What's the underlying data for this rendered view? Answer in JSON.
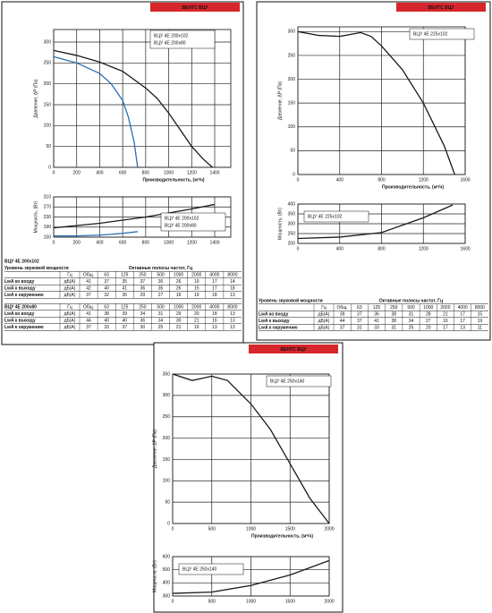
{
  "panels": [
    {
      "header": "ВЕНТС ВЦУ",
      "pressure": {
        "ylabel": "Давление, ΔP (Па)",
        "xlabel": "Производительность, (м³/ч)",
        "xlim": [
          0,
          1540
        ],
        "xticks": [
          0,
          200,
          400,
          600,
          800,
          1000,
          1200,
          1400
        ],
        "ylim": [
          0,
          330
        ],
        "yticks": [
          0,
          50,
          100,
          150,
          200,
          250,
          300
        ],
        "series": [
          {
            "name": "ВЦУ 4Е 200х102",
            "color": "#1a1a1a",
            "x": [
              0,
              200,
              400,
              600,
              800,
              900,
              1000,
              1100,
              1200,
              1300,
              1380
            ],
            "y": [
              280,
              268,
              252,
              230,
              190,
              165,
              130,
              90,
              50,
              20,
              0
            ]
          },
          {
            "name": "ВЦУ 4Е 200х80",
            "color": "#2a6db0",
            "x": [
              0,
              200,
              400,
              500,
              600,
              650,
              700,
              730
            ],
            "y": [
              265,
              250,
              225,
              200,
              160,
              120,
              60,
              0
            ]
          }
        ]
      },
      "power": {
        "ylabel": "Мощность, (Вт)",
        "xlim": [
          0,
          1540
        ],
        "xticks": [
          0,
          200,
          400,
          600,
          800,
          1000,
          1200,
          1400
        ],
        "ylim": [
          150,
          310
        ],
        "yticks": [
          150,
          190,
          230,
          270,
          310
        ],
        "series": [
          {
            "name": "ВЦУ 4Е 200х102",
            "color": "#1a1a1a",
            "x": [
              0,
              400,
              800,
              1200,
              1400
            ],
            "y": [
              187,
              205,
              230,
              262,
              280
            ]
          },
          {
            "name": "ВЦУ 4Е 200х80",
            "color": "#2a6db0",
            "x": [
              0,
              200,
              400,
              600,
              730
            ],
            "y": [
              155,
              155,
              158,
              165,
              172
            ]
          }
        ]
      },
      "tables": [
        {
          "title": "ВЦУ 4Е 200х102",
          "group_labels": [
            "Уровень звуковой мощности",
            "Октавные полосы частот, Гц"
          ],
          "columns": [
            "Гц",
            "Общ.",
            "63",
            "125",
            "250",
            "500",
            "1000",
            "2000",
            "4000",
            "8000"
          ],
          "rows": [
            {
              "label": "LwA ко входу",
              "unit": "дБ(А)",
              "values": [
                41,
                37,
                35,
                37,
                30,
                26,
                19,
                17,
                14
              ]
            },
            {
              "label": "LwA к выходу",
              "unit": "дБ(А)",
              "values": [
                42,
                40,
                41,
                36,
                35,
                26,
                15,
                17,
                18
              ]
            },
            {
              "label": "LwA к окружению",
              "unit": "дБ(А)",
              "values": [
                37,
                32,
                35,
                29,
                27,
                16,
                19,
                18,
                13
              ]
            }
          ]
        },
        {
          "title": "ВЦУ 4Е 200х80",
          "columns": [
            "Гц",
            "Общ.",
            "63",
            "125",
            "250",
            "500",
            "1000",
            "2000",
            "4000",
            "8000"
          ],
          "rows": [
            {
              "label": "LwA ко входу",
              "unit": "дБ(А)",
              "values": [
                41,
                38,
                39,
                34,
                31,
                29,
                20,
                18,
                13
              ]
            },
            {
              "label": "LwA к выходу",
              "unit": "дБ(А)",
              "values": [
                44,
                40,
                40,
                36,
                34,
                30,
                21,
                16,
                13
              ]
            },
            {
              "label": "LwA к окружению",
              "unit": "дБ(А)",
              "values": [
                37,
                33,
                37,
                30,
                25,
                21,
                16,
                13,
                13
              ]
            }
          ]
        }
      ]
    },
    {
      "header": "ВЕНТС ВЦУ",
      "pressure": {
        "ylabel": "Давление, ΔP (Па)",
        "xlabel": "Производительность, (м³/ч)",
        "xlim": [
          0,
          1600
        ],
        "xticks": [
          0,
          400,
          800,
          1200,
          1600
        ],
        "ylim": [
          0,
          310
        ],
        "yticks": [
          0,
          50,
          100,
          150,
          200,
          250,
          300
        ],
        "series": [
          {
            "name": "ВЦУ 4Е 225х102",
            "color": "#1a1a1a",
            "x": [
              0,
              200,
              400,
              600,
              700,
              800,
              1000,
              1200,
              1400,
              1500
            ],
            "y": [
              300,
              292,
              290,
              298,
              290,
              270,
              220,
              150,
              60,
              0
            ]
          }
        ]
      },
      "power": {
        "ylabel": "Мощность, (Вт)",
        "xlim": [
          0,
          1600
        ],
        "xticks": [
          0,
          400,
          800,
          1200,
          1600
        ],
        "ylim": [
          200,
          400
        ],
        "yticks": [
          200,
          250,
          300,
          350,
          400
        ],
        "series": [
          {
            "name": "ВЦУ 4Е 225х102",
            "color": "#1a1a1a",
            "x": [
              0,
              400,
              800,
              1200,
              1480
            ],
            "y": [
              225,
              232,
              255,
              330,
              395
            ]
          }
        ]
      },
      "tables": [
        {
          "group_labels": [
            "Уровень звуковой мощности",
            "Октавные полосы частот, Гц"
          ],
          "columns": [
            "Гц",
            "Общ.",
            "63",
            "125",
            "250",
            "500",
            "1000",
            "2000",
            "4000",
            "8000"
          ],
          "rows": [
            {
              "label": "LwA ко входу",
              "unit": "дБ(А)",
              "values": [
                39,
                37,
                36,
                38,
                31,
                28,
                21,
                17,
                15
              ]
            },
            {
              "label": "LwA к выходу",
              "unit": "дБ(А)",
              "values": [
                44,
                37,
                41,
                38,
                34,
                27,
                16,
                17,
                19
              ]
            },
            {
              "label": "LwA к окружению",
              "unit": "дБ(А)",
              "values": [
                37,
                31,
                33,
                31,
                25,
                20,
                17,
                13,
                11
              ]
            }
          ]
        }
      ]
    },
    {
      "header": "ВЕНТС ВЦУ",
      "pressure": {
        "ylabel": "Давление, ΔP (Па)",
        "xlabel": "Производительность, (м³/ч)",
        "xlim": [
          0,
          2000
        ],
        "xticks": [
          0,
          500,
          1000,
          1500,
          2000
        ],
        "ylim": [
          0,
          350
        ],
        "yticks": [
          0,
          50,
          100,
          150,
          200,
          250,
          300,
          350
        ],
        "series": [
          {
            "name": "ВЦУ 4Е 250х140",
            "color": "#1a1a1a",
            "x": [
              0,
              250,
              500,
              700,
              1000,
              1250,
              1500,
              1750,
              2000
            ],
            "y": [
              350,
              335,
              345,
              335,
              280,
              220,
              140,
              60,
              0
            ]
          }
        ]
      },
      "power": {
        "ylabel": "Мощность, (Вт)",
        "xlim": [
          0,
          2000
        ],
        "xticks": [
          0,
          500,
          1000,
          1500,
          2000
        ],
        "ylim": [
          300,
          600
        ],
        "yticks": [
          300,
          400,
          500,
          600
        ],
        "series": [
          {
            "name": "ВЦУ 4Е 250х140",
            "color": "#1a1a1a",
            "x": [
              0,
              500,
              1000,
              1500,
              2000
            ],
            "y": [
              320,
              330,
              380,
              460,
              570
            ]
          }
        ]
      },
      "tables": []
    }
  ]
}
